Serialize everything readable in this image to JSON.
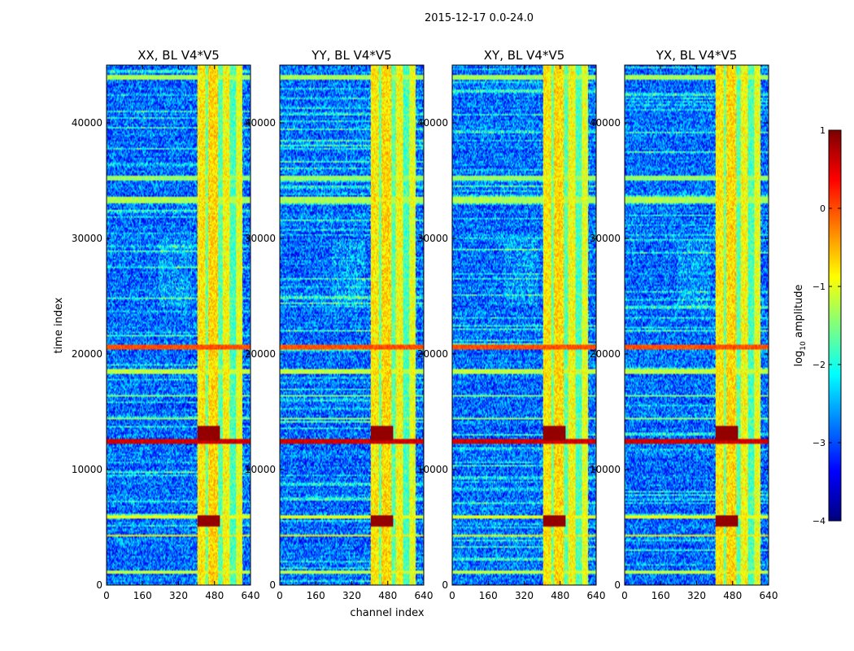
{
  "chart_data": {
    "type": "heatmap",
    "suptitle": "2015-12-17 0.0-24.0",
    "xlabel": "channel index",
    "ylabel": "time index",
    "xlim": [
      0,
      640
    ],
    "ylim": [
      0,
      45000
    ],
    "xticks": [
      0,
      160,
      320,
      480,
      640
    ],
    "yticks": [
      0,
      10000,
      20000,
      30000,
      40000
    ],
    "colormap": "jet",
    "colorbar": {
      "label_prefix": "log",
      "label_sub": "10",
      "label_suffix": " amplitude",
      "range": [
        -4,
        1
      ],
      "ticks": [
        -4,
        -3,
        -2,
        -1,
        0,
        1
      ]
    },
    "rfi_channel_bands": [
      {
        "start": 405,
        "end": 440,
        "level": -0.8
      },
      {
        "start": 440,
        "end": 452,
        "level": -1.6
      },
      {
        "start": 452,
        "end": 495,
        "level": -0.7
      },
      {
        "start": 495,
        "end": 515,
        "level": -1.7
      },
      {
        "start": 515,
        "end": 550,
        "level": -0.9
      },
      {
        "start": 550,
        "end": 575,
        "level": -1.8
      },
      {
        "start": 575,
        "end": 605,
        "level": -1.0
      }
    ],
    "horizontal_bands": [
      {
        "t0": 1000,
        "t1": 1250,
        "level": -1.2
      },
      {
        "t0": 4200,
        "t1": 4350,
        "level": -0.8
      },
      {
        "t0": 5800,
        "t1": 6050,
        "level": -1.0
      },
      {
        "t0": 12200,
        "t1": 12700,
        "level": 0.6
      },
      {
        "t0": 14300,
        "t1": 14500,
        "level": -1.4
      },
      {
        "t0": 16300,
        "t1": 16500,
        "level": -1.5
      },
      {
        "t0": 18300,
        "t1": 18700,
        "level": -1.2
      },
      {
        "t0": 20400,
        "t1": 20800,
        "level": 0.0
      },
      {
        "t0": 29200,
        "t1": 29300,
        "level": -0.3
      },
      {
        "t0": 33000,
        "t1": 33600,
        "level": -1.3
      },
      {
        "t0": 35000,
        "t1": 35400,
        "level": -1.4
      },
      {
        "t0": 43800,
        "t1": 44200,
        "level": -1.3
      }
    ],
    "hot_spots": [
      {
        "t0": 12500,
        "t1": 13800,
        "level": 0.9
      },
      {
        "t0": 5000,
        "t1": 6000,
        "level": 0.9
      }
    ],
    "panels": [
      {
        "title": "XX, BL V4*V5",
        "seed": 11
      },
      {
        "title": "YY, BL V4*V5",
        "seed": 23
      },
      {
        "title": "XY, BL V4*V5",
        "seed": 37
      },
      {
        "title": "YX, BL V4*V5",
        "seed": 53
      }
    ]
  }
}
